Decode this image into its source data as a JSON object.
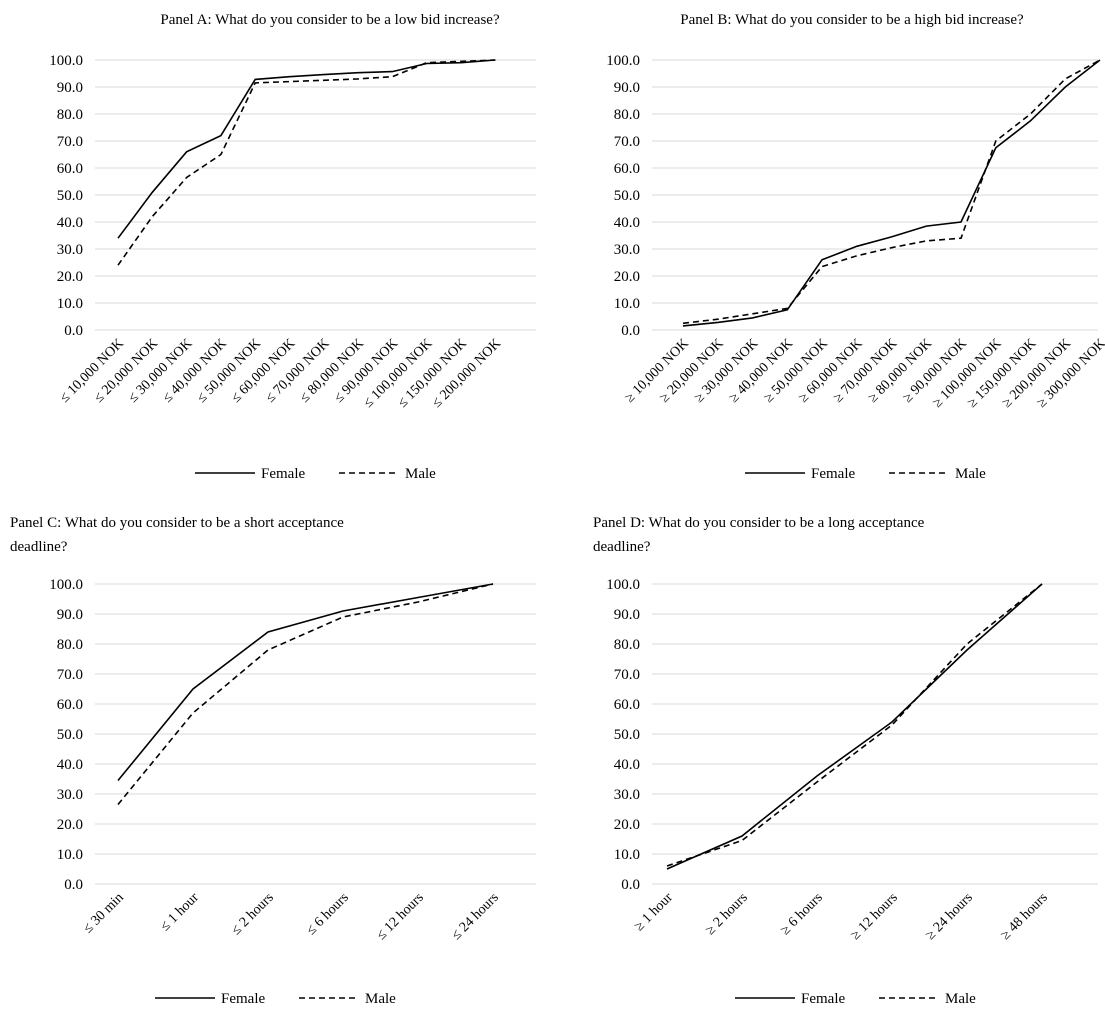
{
  "chart_data": [
    {
      "type": "line",
      "title": "Panel A: What do you consider to be a low bid increase?",
      "title_lines": [
        "Panel A: What do you consider to be a low bid increase?"
      ],
      "categories": [
        "≤ 10,000 NOK",
        "≤ 20,000 NOK",
        "≤ 30,000 NOK",
        "≤ 40,000 NOK",
        "≤ 50,000 NOK",
        "≤ 60,000 NOK",
        "≤ 70,000 NOK",
        "≤ 80,000 NOK",
        "≤ 90,000 NOK",
        "≤ 100,000 NOK",
        "≤ 150,000 NOK",
        "≤ 200,000 NOK"
      ],
      "yticks": [
        "0.0",
        "10.0",
        "20.0",
        "30.0",
        "40.0",
        "50.0",
        "60.0",
        "70.0",
        "80.0",
        "90.0",
        "100.0"
      ],
      "ylim": [
        0,
        100
      ],
      "grid": true,
      "legend": "bottom",
      "series": [
        {
          "name": "Female",
          "style": "solid",
          "values": [
            34.0,
            51.0,
            66.0,
            72.0,
            92.8,
            93.8,
            94.6,
            95.3,
            95.7,
            98.7,
            99.0,
            100.0
          ]
        },
        {
          "name": "Male",
          "style": "dashed",
          "values": [
            24.0,
            42.0,
            56.5,
            65.0,
            91.5,
            92.0,
            92.5,
            93.0,
            93.8,
            99.0,
            99.5,
            100.0
          ]
        }
      ]
    },
    {
      "type": "line",
      "title": "Panel B: What do you consider to be a high bid increase?",
      "title_lines": [
        "Panel B: What do you consider to be a high bid increase?"
      ],
      "categories": [
        "≥ 10,000 NOK",
        "≥ 20,000 NOK",
        "≥ 30,000 NOK",
        "≥ 40,000 NOK",
        "≥ 50,000 NOK",
        "≥ 60,000 NOK",
        "≥ 70,000 NOK",
        "≥ 80,000 NOK",
        "≥ 90,000 NOK",
        "≥ 100,000 NOK",
        "≥ 150,000 NOK",
        "≥ 200,000 NOK",
        "≥ 300,000 NOK"
      ],
      "yticks": [
        "0.0",
        "10.0",
        "20.0",
        "30.0",
        "40.0",
        "50.0",
        "60.0",
        "70.0",
        "80.0",
        "90.0",
        "100.0"
      ],
      "ylim": [
        0,
        100
      ],
      "grid": true,
      "legend": "bottom",
      "series": [
        {
          "name": "Female",
          "style": "solid",
          "values": [
            1.5,
            2.8,
            4.5,
            7.5,
            26.0,
            31.0,
            34.5,
            38.5,
            40.0,
            67.5,
            77.5,
            90.0,
            100.0
          ]
        },
        {
          "name": "Male",
          "style": "dashed",
          "values": [
            2.5,
            4.0,
            6.0,
            8.0,
            23.5,
            27.5,
            30.5,
            33.0,
            34.0,
            70.0,
            80.0,
            93.0,
            100.0
          ]
        }
      ]
    },
    {
      "type": "line",
      "title": "Panel C: What do you consider to be a short acceptance deadline?",
      "title_lines": [
        "Panel C: What do you consider to be a short acceptance",
        "deadline?"
      ],
      "categories": [
        "≤ 30 min",
        "≤ 1 hour",
        "≤ 2 hours",
        "≤ 6 hours",
        "≤ 12 hours",
        "≤ 24 hours"
      ],
      "yticks": [
        "0.0",
        "10.0",
        "20.0",
        "30.0",
        "40.0",
        "50.0",
        "60.0",
        "70.0",
        "80.0",
        "90.0",
        "100.0"
      ],
      "ylim": [
        0,
        100
      ],
      "grid": true,
      "legend": "bottom",
      "series": [
        {
          "name": "Female",
          "style": "solid",
          "values": [
            34.5,
            65.0,
            84.0,
            91.0,
            95.5,
            100.0
          ]
        },
        {
          "name": "Male",
          "style": "dashed",
          "values": [
            26.5,
            57.0,
            78.0,
            89.0,
            94.0,
            100.0
          ]
        }
      ]
    },
    {
      "type": "line",
      "title": "Panel D: What do you consider to be a long acceptance deadline?",
      "title_lines": [
        "Panel D: What do you consider to be a long acceptance",
        "deadline?"
      ],
      "categories": [
        "≥ 1 hour",
        "≥ 2 hours",
        "≥ 6 hours",
        "≥ 12 hours",
        "≥ 24 hours",
        "≥ 48 hours"
      ],
      "yticks": [
        "0.0",
        "10.0",
        "20.0",
        "30.0",
        "40.0",
        "50.0",
        "60.0",
        "70.0",
        "80.0",
        "90.0",
        "100.0"
      ],
      "ylim": [
        0,
        100
      ],
      "grid": true,
      "legend": "bottom",
      "series": [
        {
          "name": "Female",
          "style": "solid",
          "values": [
            5.0,
            16.0,
            36.0,
            54.0,
            78.0,
            100.0
          ]
        },
        {
          "name": "Male",
          "style": "dashed",
          "values": [
            6.0,
            14.5,
            34.0,
            53.0,
            80.0,
            100.0
          ]
        }
      ]
    }
  ]
}
